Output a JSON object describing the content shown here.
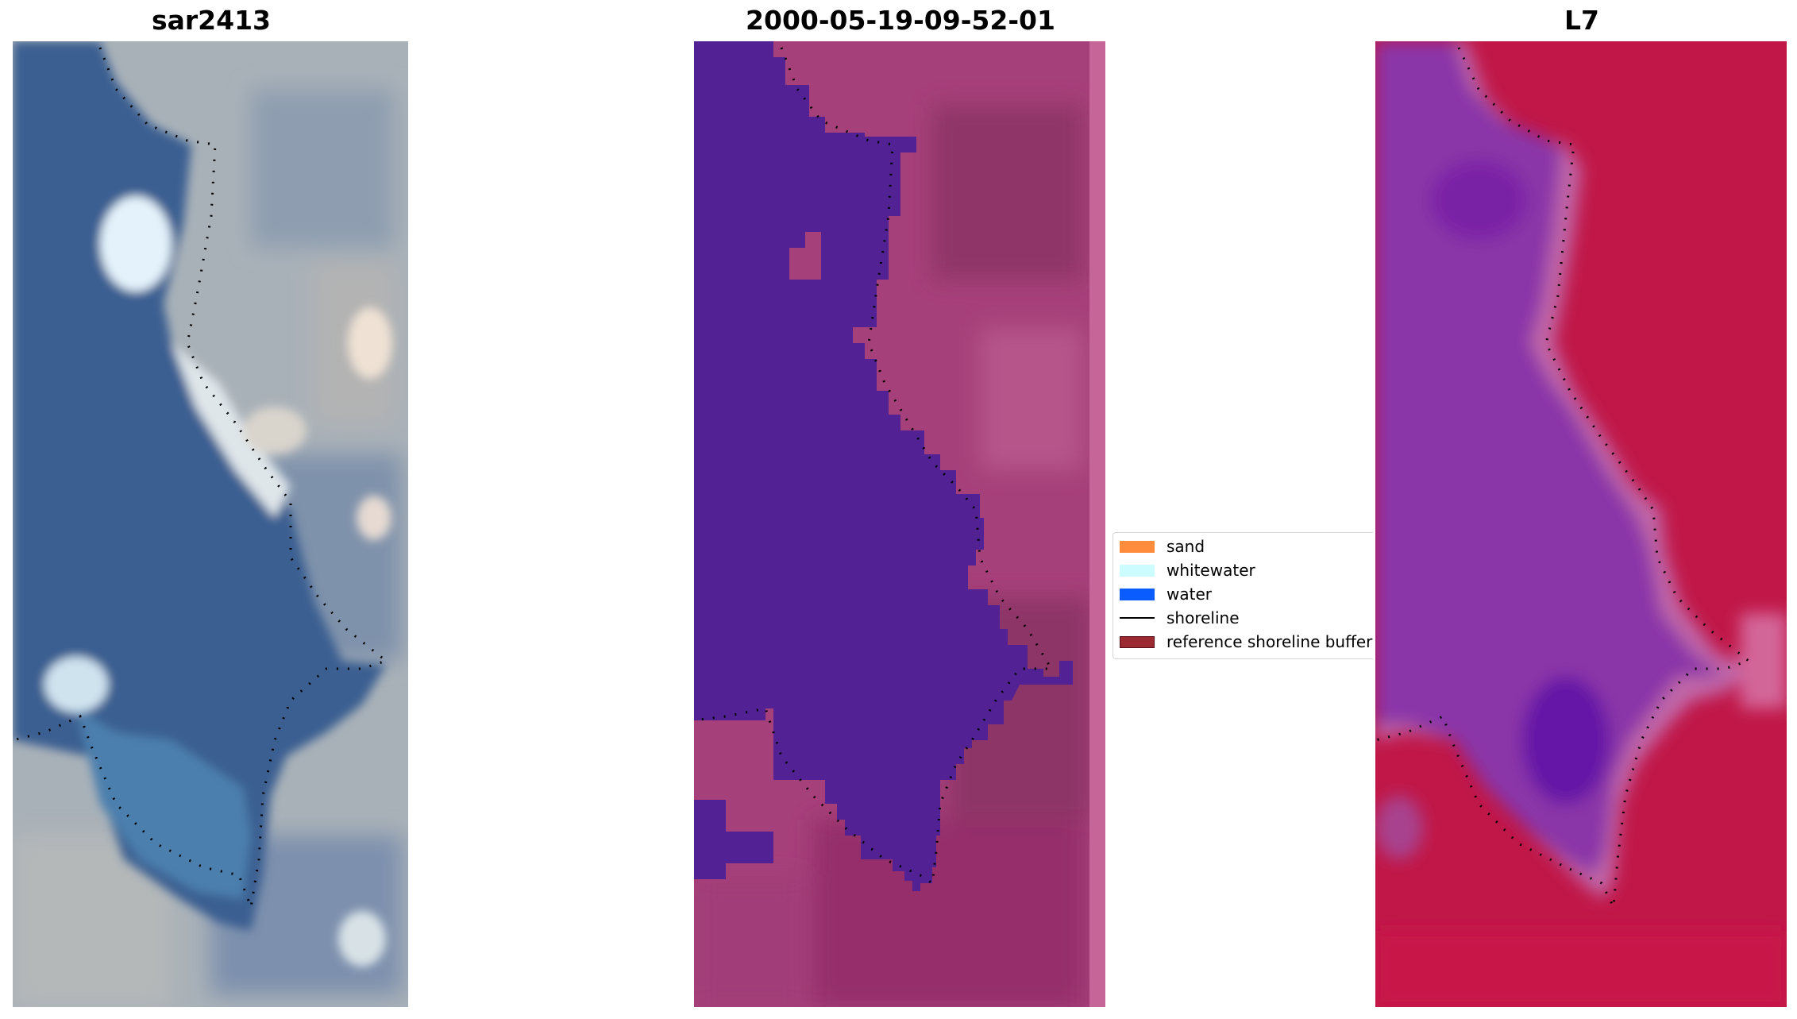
{
  "panels": [
    {
      "title": "sar2413"
    },
    {
      "title": "2000-05-19-09-52-01"
    },
    {
      "title": "L7"
    }
  ],
  "legend": {
    "items": [
      {
        "label": "sand",
        "kind": "patch",
        "color": "#ff8c3d"
      },
      {
        "label": "whitewater",
        "kind": "patch",
        "color": "#ccfcff"
      },
      {
        "label": "water",
        "kind": "patch",
        "color": "#0a5cff"
      },
      {
        "label": "shoreline",
        "kind": "line",
        "color": "#000000"
      },
      {
        "label": "reference shoreline buffer",
        "kind": "patch",
        "color": "#9c2a32",
        "edge": "#5a1018"
      }
    ]
  },
  "colors": {
    "rgb_water": "#3d5f8f",
    "rgb_land": "#a7b0b6",
    "rgb_whitewater": "#e8f3f7",
    "class_water": "#522294",
    "class_land": "#a6407a",
    "class_strip": "#c56598",
    "mndwi_water": "#8a35a8",
    "mndwi_land": "#c01748"
  }
}
